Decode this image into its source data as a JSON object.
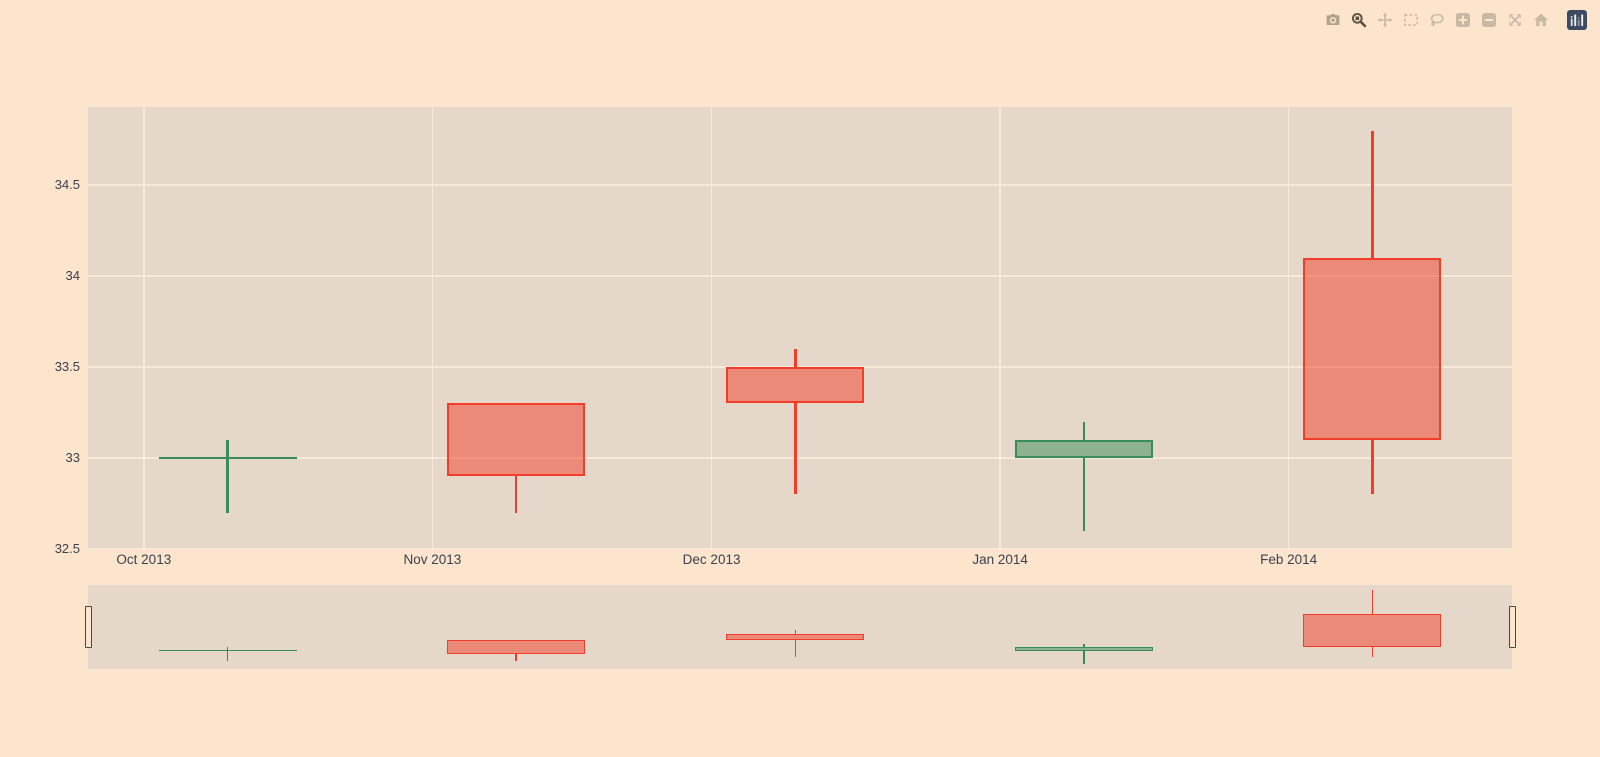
{
  "modebar": {
    "active_button": "zoom",
    "buttons": [
      {
        "name": "camera",
        "title": "Download plot as png"
      },
      {
        "name": "zoom",
        "title": "Zoom"
      },
      {
        "name": "pan",
        "title": "Pan"
      },
      {
        "name": "box-select",
        "title": "Box Select"
      },
      {
        "name": "lasso",
        "title": "Lasso Select"
      },
      {
        "name": "zoom-in",
        "title": "Zoom in"
      },
      {
        "name": "zoom-out",
        "title": "Zoom out"
      },
      {
        "name": "autoscale",
        "title": "Autoscale"
      },
      {
        "name": "reset-home",
        "title": "Reset axes"
      },
      {
        "name": "plotly-logo",
        "title": "Produced with Plotly"
      }
    ]
  },
  "chart_data": {
    "type": "candlestick",
    "x": [
      "2013-10-10",
      "2013-11-10",
      "2013-12-10",
      "2014-01-10",
      "2014-02-10"
    ],
    "open": [
      33.0,
      33.3,
      33.5,
      33.0,
      34.1
    ],
    "high": [
      33.1,
      33.3,
      33.6,
      33.2,
      34.8
    ],
    "low": [
      32.7,
      32.7,
      32.8,
      32.6,
      32.8
    ],
    "close": [
      33.0,
      32.9,
      33.3,
      33.1,
      33.1
    ],
    "title": "",
    "xlabel": "",
    "ylabel": "",
    "x_ticks": [
      {
        "date": "2013-10-01",
        "label": "Oct 2013"
      },
      {
        "date": "2013-11-01",
        "label": "Nov 2013"
      },
      {
        "date": "2013-12-01",
        "label": "Dec 2013"
      },
      {
        "date": "2014-01-01",
        "label": "Jan 2014"
      },
      {
        "date": "2014-02-01",
        "label": "Feb 2014"
      }
    ],
    "y_ticks": [
      {
        "value": 32.5,
        "label": "32.5"
      },
      {
        "value": 33,
        "label": "33"
      },
      {
        "value": 33.5,
        "label": "33.5"
      },
      {
        "value": 34,
        "label": "34"
      },
      {
        "value": 34.5,
        "label": "34.5"
      }
    ],
    "x_range": [
      "2013-09-25",
      "2014-02-25"
    ],
    "y_range": [
      32.5,
      34.93
    ],
    "slider_y_range": [
      32.45,
      34.95
    ],
    "grid": true,
    "rangeslider": true,
    "legend": "none",
    "colors": {
      "paper_bg": "#fce4cd",
      "plot_bg": "#e5d7c9",
      "grid": "#f8ead8",
      "tick_text": "#3b4150",
      "increasing_line": "#388c58",
      "decreasing_line": "#f33d2b",
      "fill_alpha": 0.5,
      "handle_border": "#4f483d",
      "handle_fill": "#fce4cd",
      "modebar_inactive": "#c9b8a4",
      "modebar_camera": "#b3a28e",
      "modebar_active": "#5d5244",
      "logo_bg": "#3d4a63"
    }
  }
}
